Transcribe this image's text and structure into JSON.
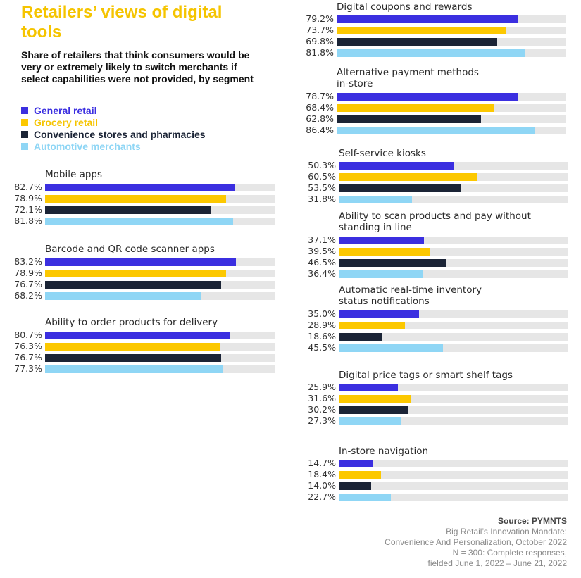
{
  "title": "Retailers’ views of digital tools",
  "subtitle": "Share of retailers that think consumers would be very or extremely likely to switch merchants if select capabilities were not provided, by segment",
  "colors": {
    "general_retail": "#3b2fe0",
    "grocery_retail": "#fcc800",
    "convenience": "#1b2436",
    "automotive": "#8fd6f5",
    "track": "#e6e6e6",
    "title": "#f5c400"
  },
  "legend": [
    {
      "label": "General retail",
      "color": "#3b2fe0"
    },
    {
      "label": "Grocery retail",
      "color": "#fcc800"
    },
    {
      "label": "Convenience stores and pharmacies",
      "color": "#1b2436"
    },
    {
      "label": "Automotive merchants",
      "color": "#8fd6f5"
    }
  ],
  "chart_data": {
    "type": "bar",
    "orientation": "horizontal",
    "value_unit": "percent",
    "xlim": [
      0,
      100
    ],
    "series_names": [
      "General retail",
      "Grocery retail",
      "Convenience stores and pharmacies",
      "Automotive merchants"
    ],
    "groups": [
      {
        "name": "Mobile apps",
        "values": [
          82.7,
          78.9,
          72.1,
          81.8
        ],
        "labels": [
          "82.7%",
          "78.9%",
          "72.1%",
          "81.8%"
        ]
      },
      {
        "name": "Barcode and QR code scanner apps",
        "values": [
          83.2,
          78.9,
          76.7,
          68.2
        ],
        "labels": [
          "83.2%",
          "78.9%",
          "76.7%",
          "68.2%"
        ]
      },
      {
        "name": "Ability to order products for delivery",
        "values": [
          80.7,
          76.3,
          76.7,
          77.3
        ],
        "labels": [
          "80.7%",
          "76.3%",
          "76.7%",
          "77.3%"
        ]
      },
      {
        "name": "Digital coupons and rewards",
        "values": [
          79.2,
          73.7,
          69.8,
          81.8
        ],
        "labels": [
          "79.2%",
          "73.7%",
          "69.8%",
          "81.8%"
        ]
      },
      {
        "name": "Alternative payment methods\nin-store",
        "values": [
          78.7,
          68.4,
          62.8,
          86.4
        ],
        "labels": [
          "78.7%",
          "68.4%",
          "62.8%",
          "86.4%"
        ]
      },
      {
        "name": "Self-service kiosks",
        "values": [
          50.3,
          60.5,
          53.5,
          31.8
        ],
        "labels": [
          "50.3%",
          "60.5%",
          "53.5%",
          "31.8%"
        ]
      },
      {
        "name": "Ability to scan products and pay without\nstanding in line",
        "values": [
          37.1,
          39.5,
          46.5,
          36.4
        ],
        "labels": [
          "37.1%",
          "39.5%",
          "46.5%",
          "36.4%"
        ]
      },
      {
        "name": "Automatic real-time inventory\nstatus notifications",
        "values": [
          35.0,
          28.9,
          18.6,
          45.5
        ],
        "labels": [
          "35.0%",
          "28.9%",
          "18.6%",
          "45.5%"
        ]
      },
      {
        "name": "Digital price tags or smart shelf tags",
        "values": [
          25.9,
          31.6,
          30.2,
          27.3
        ],
        "labels": [
          "25.9%",
          "31.6%",
          "30.2%",
          "27.3%"
        ]
      },
      {
        "name": "In-store navigation",
        "values": [
          14.7,
          18.4,
          14.0,
          22.7
        ],
        "labels": [
          "14.7%",
          "18.4%",
          "14.0%",
          "22.7%"
        ]
      }
    ]
  },
  "source": {
    "label": "Source: PYMNTS",
    "lines": [
      "Big Retail’s Innovation Mandate:",
      "Convenience And Personalization, October 2022",
      "N = 300: Complete responses,",
      "fielded June 1, 2022 – June 21, 2022"
    ]
  }
}
